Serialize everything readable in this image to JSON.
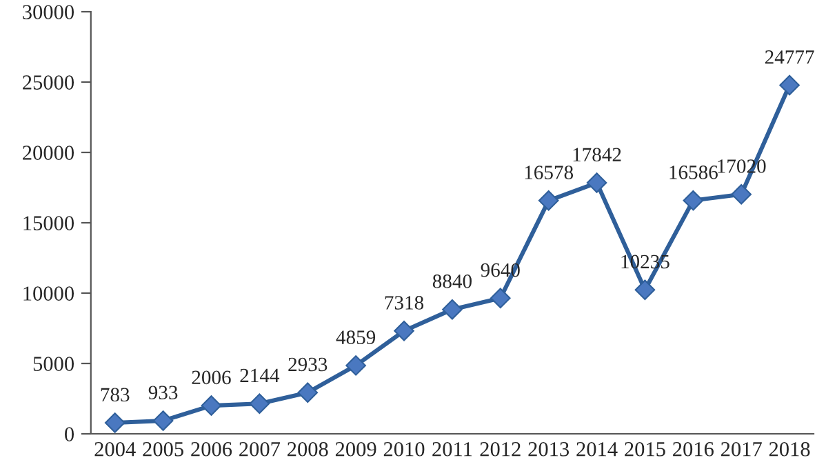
{
  "chart_data": {
    "type": "line",
    "categories": [
      "2004",
      "2005",
      "2006",
      "2007",
      "2008",
      "2009",
      "2010",
      "2011",
      "2012",
      "2013",
      "2014",
      "2015",
      "2016",
      "2017",
      "2018"
    ],
    "series": [
      {
        "color": "#2f5f9a",
        "values": [
          783,
          933,
          2006,
          2144,
          2933,
          4859,
          7318,
          8840,
          9640,
          16578,
          17842,
          10235,
          16586,
          17020,
          24777
        ]
      }
    ],
    "ylim": [
      0,
      30000
    ],
    "yticks": [
      0,
      5000,
      10000,
      15000,
      20000,
      25000,
      30000
    ],
    "grid": false,
    "marker": "diamond",
    "line_style": "solid",
    "data_labels": true
  }
}
